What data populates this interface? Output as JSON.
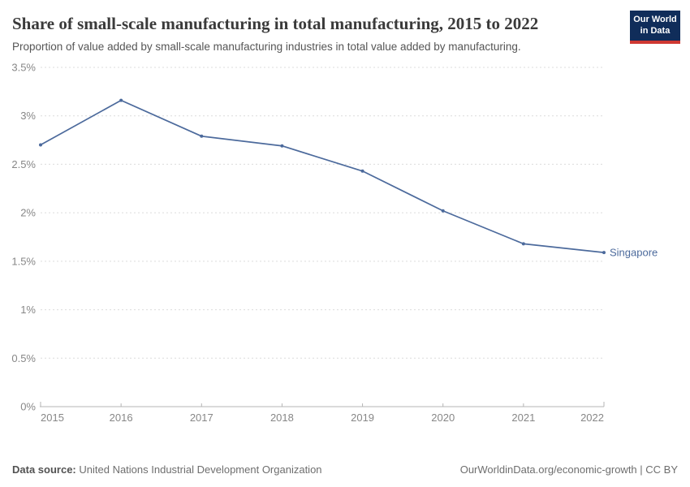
{
  "header": {
    "logo": {
      "line1": "Our World",
      "line2": "in Data",
      "bg": "#102d5a",
      "accent": "#cf3832"
    }
  },
  "chart_data": {
    "type": "line",
    "title": "Share of small-scale manufacturing in total manufacturing, 2015 to 2022",
    "subtitle": "Proportion of value added by small-scale manufacturing industries in total value added by manufacturing.",
    "x": [
      2015,
      2016,
      2017,
      2018,
      2019,
      2020,
      2021,
      2022
    ],
    "series": [
      {
        "name": "Singapore",
        "color": "#4c6a9c",
        "values": [
          2.7,
          3.16,
          2.79,
          2.69,
          2.43,
          2.02,
          1.68,
          1.59
        ]
      }
    ],
    "xlabel": "",
    "ylabel": "",
    "unit": "%",
    "ylim": [
      0,
      3.5
    ],
    "yticks": [
      0,
      0.5,
      1,
      1.5,
      2,
      2.5,
      3,
      3.5
    ],
    "ytick_labels": [
      "0%",
      "0.5%",
      "1%",
      "1.5%",
      "2%",
      "2.5%",
      "3%",
      "3.5%"
    ],
    "grid": "horizontal-dashed",
    "legend": "line-end-label",
    "grid_color": "#dcdcdc",
    "axis_color": "#b5b5b5",
    "tick_label_color": "#878787"
  },
  "footer": {
    "datasource_label": "Data source:",
    "datasource_value": "United Nations Industrial Development Organization",
    "attribution": "OurWorldinData.org/economic-growth | CC BY"
  }
}
